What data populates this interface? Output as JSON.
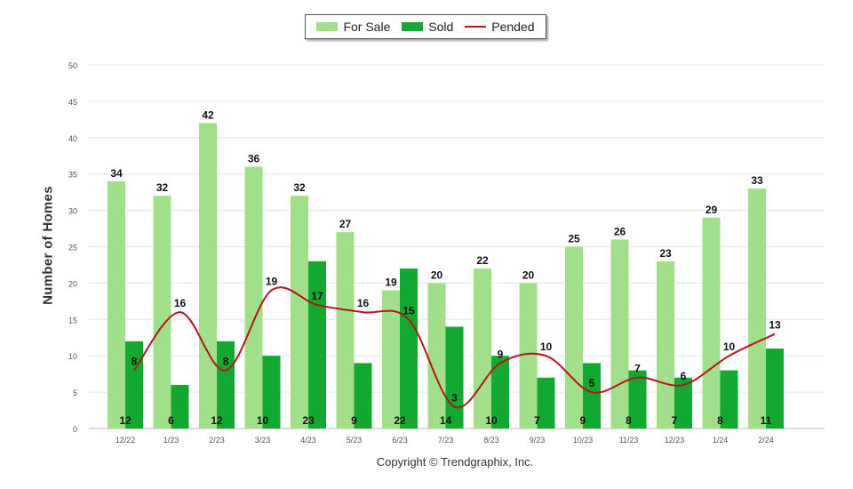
{
  "legend": {
    "for_sale": "For Sale",
    "sold": "Sold",
    "pended": "Pended"
  },
  "copyright": "Copyright © Trendgraphix, Inc.",
  "chart_data": {
    "type": "bar",
    "title": "",
    "xlabel": "",
    "ylabel": "Number of Homes",
    "ylim": [
      0,
      50
    ],
    "yticks": [
      0,
      5,
      10,
      15,
      20,
      25,
      30,
      35,
      40,
      45,
      50
    ],
    "grid": true,
    "legend_position": "top-center",
    "categories": [
      "12/22",
      "1/23",
      "2/23",
      "3/23",
      "4/23",
      "5/23",
      "6/23",
      "7/23",
      "8/23",
      "9/23",
      "10/23",
      "11/23",
      "12/23",
      "1/24",
      "2/24"
    ],
    "series": [
      {
        "name": "For Sale",
        "type": "bar",
        "color": "#a2df8b",
        "values": [
          34,
          32,
          42,
          36,
          32,
          27,
          19,
          20,
          22,
          20,
          25,
          26,
          23,
          29,
          33
        ]
      },
      {
        "name": "Sold",
        "type": "bar",
        "color": "#12a832",
        "values": [
          12,
          6,
          12,
          10,
          23,
          9,
          22,
          14,
          10,
          7,
          9,
          8,
          7,
          8,
          11
        ]
      },
      {
        "name": "Pended",
        "type": "line",
        "color": "#b5161b",
        "values": [
          8,
          16,
          8,
          19,
          17,
          16,
          15,
          3,
          9,
          10,
          5,
          7,
          6,
          10,
          13
        ]
      }
    ]
  }
}
